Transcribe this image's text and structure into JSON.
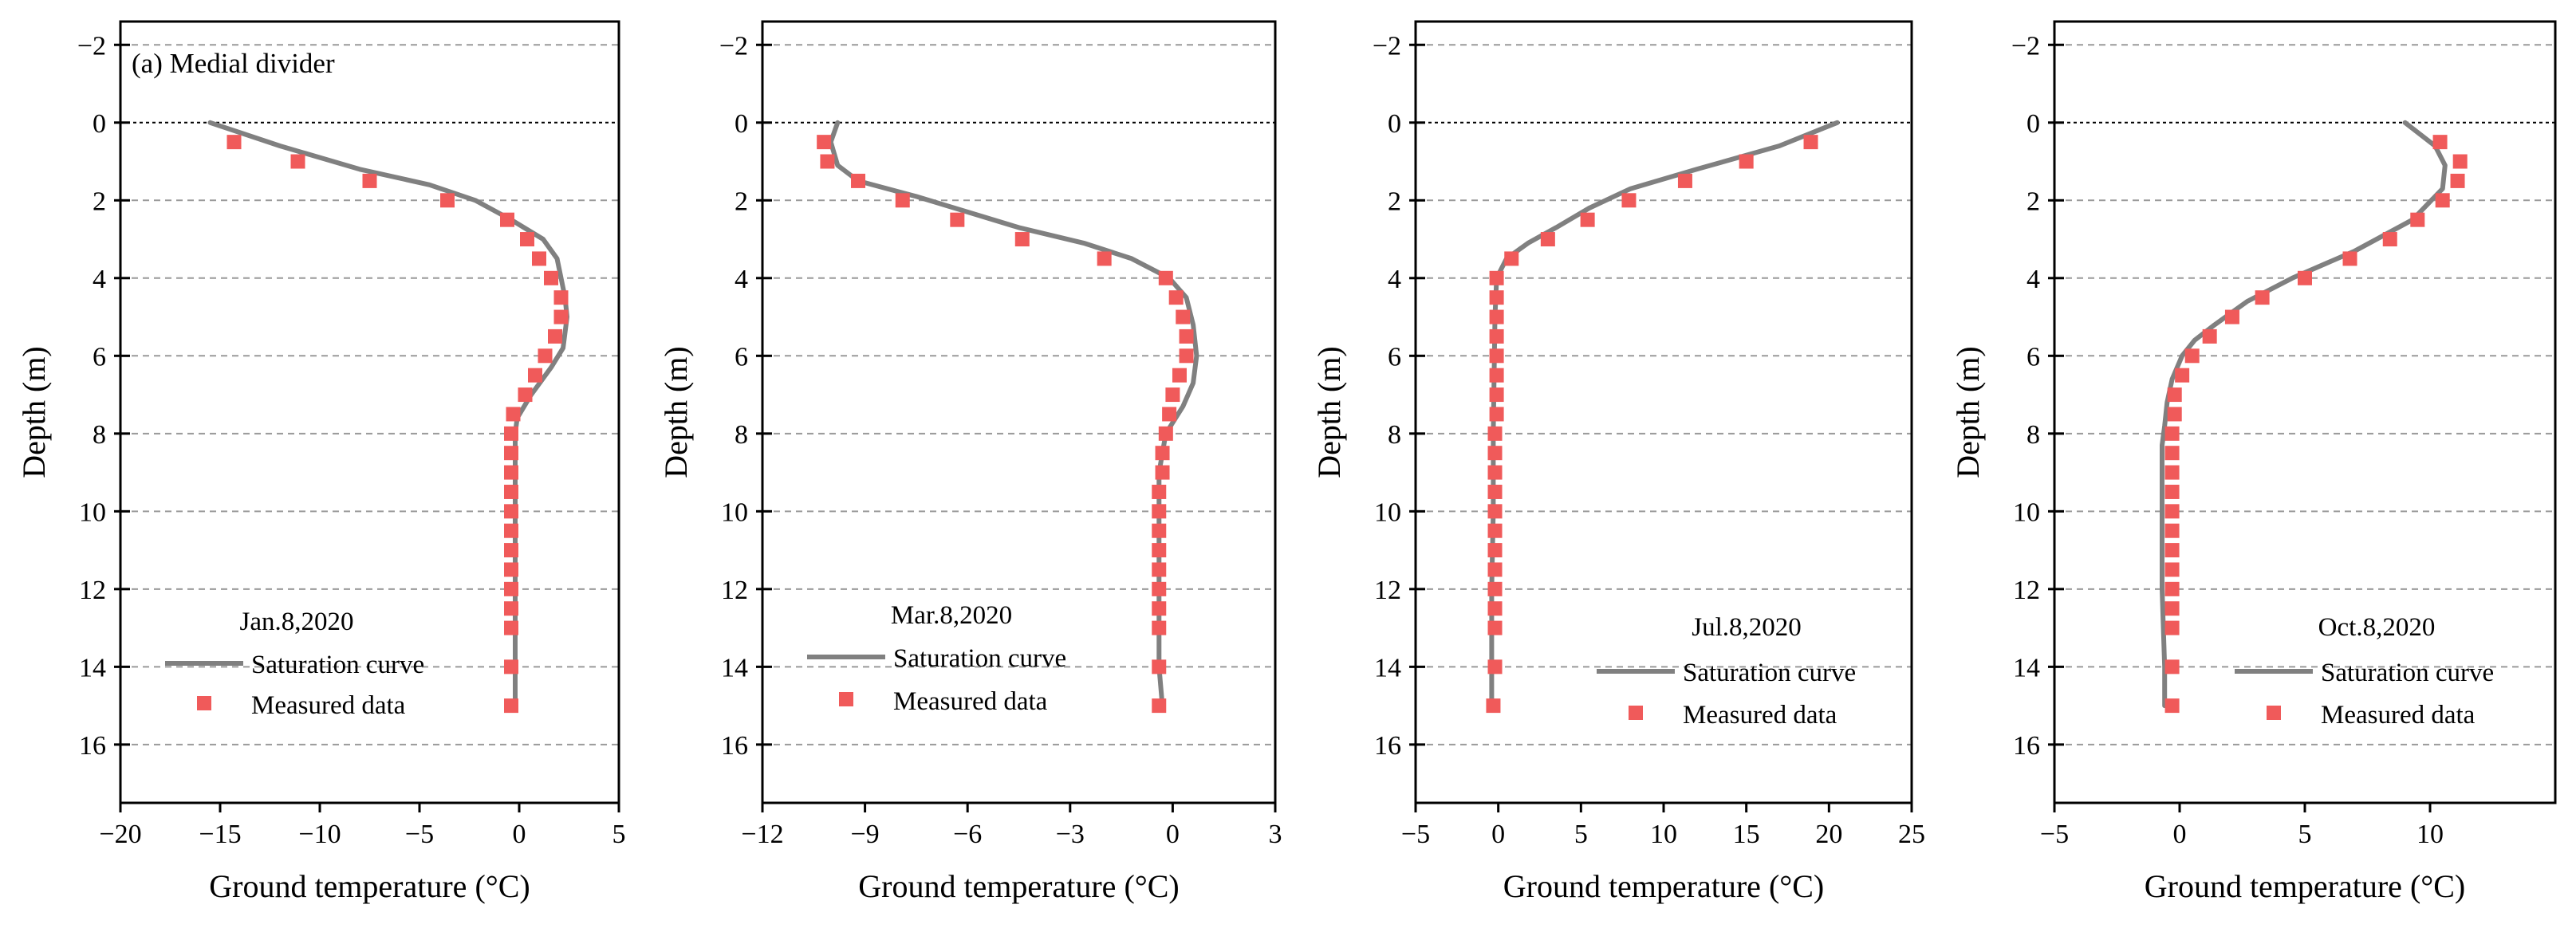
{
  "figure": {
    "series_names": {
      "curve": "Saturation curve",
      "points": "Measured data"
    },
    "colors": {
      "curve": "#808080",
      "points": "#f05a5a",
      "grid": "#9a9a9a",
      "axis": "#000000",
      "zero_line": "#000000"
    }
  },
  "chart_data": [
    {
      "type": "line",
      "panel_label": "(a) Medial divider",
      "date": "Jan.8,2020",
      "xlabel": "Ground temperature (°C)",
      "ylabel": "Depth (m)",
      "xlim": [
        -20,
        5
      ],
      "xticks": [
        -20,
        -15,
        -10,
        -5,
        0,
        5
      ],
      "xtick_labels": [
        "−20",
        "−15",
        "−10",
        "−5",
        "0",
        "5"
      ],
      "ylim": [
        -2.6,
        17.5
      ],
      "yticks": [
        -2,
        0,
        2,
        4,
        6,
        8,
        10,
        12,
        14,
        16
      ],
      "ytick_labels": [
        "−2",
        "0",
        "2",
        "4",
        "6",
        "8",
        "10",
        "12",
        "14",
        "16"
      ],
      "grid": "horizontal dashed",
      "saturation_curve": [
        [
          -15.5,
          0
        ],
        [
          -12,
          0.6
        ],
        [
          -8,
          1.2
        ],
        [
          -4.5,
          1.6
        ],
        [
          -2.2,
          2.0
        ],
        [
          -0.4,
          2.5
        ],
        [
          1.2,
          3.0
        ],
        [
          1.9,
          3.5
        ],
        [
          2.3,
          4.5
        ],
        [
          2.4,
          5.0
        ],
        [
          2.2,
          5.8
        ],
        [
          1.6,
          6.3
        ],
        [
          0.6,
          7.0
        ],
        [
          -0.1,
          7.6
        ],
        [
          -0.2,
          8.0
        ],
        [
          -0.2,
          10
        ],
        [
          -0.2,
          12
        ],
        [
          -0.2,
          14
        ],
        [
          -0.2,
          15
        ]
      ],
      "measured_data": [
        [
          -14.3,
          0.5
        ],
        [
          -11.1,
          1.0
        ],
        [
          -7.5,
          1.5
        ],
        [
          -3.6,
          2.0
        ],
        [
          -0.6,
          2.5
        ],
        [
          0.4,
          3.0
        ],
        [
          1.0,
          3.5
        ],
        [
          1.6,
          4.0
        ],
        [
          2.1,
          4.5
        ],
        [
          2.1,
          5.0
        ],
        [
          1.8,
          5.5
        ],
        [
          1.3,
          6.0
        ],
        [
          0.8,
          6.5
        ],
        [
          0.3,
          7.0
        ],
        [
          -0.3,
          7.5
        ],
        [
          -0.4,
          8.0
        ],
        [
          -0.4,
          8.5
        ],
        [
          -0.4,
          9.0
        ],
        [
          -0.4,
          9.5
        ],
        [
          -0.4,
          10.0
        ],
        [
          -0.4,
          10.5
        ],
        [
          -0.4,
          11.0
        ],
        [
          -0.4,
          11.5
        ],
        [
          -0.4,
          12.0
        ],
        [
          -0.4,
          12.5
        ],
        [
          -0.4,
          13.0
        ],
        [
          -0.4,
          14.0
        ],
        [
          -0.4,
          15.0
        ]
      ]
    },
    {
      "type": "line",
      "panel_label": "",
      "date": "Mar.8,2020",
      "xlabel": "Ground temperature (°C)",
      "ylabel": "Depth (m)",
      "xlim": [
        -12,
        3
      ],
      "xticks": [
        -12,
        -9,
        -6,
        -3,
        0,
        3
      ],
      "xtick_labels": [
        "−12",
        "−9",
        "−6",
        "−3",
        "0",
        "3"
      ],
      "ylim": [
        -2.6,
        17.5
      ],
      "yticks": [
        -2,
        0,
        2,
        4,
        6,
        8,
        10,
        12,
        14,
        16
      ],
      "ytick_labels": [
        "−2",
        "0",
        "2",
        "4",
        "6",
        "8",
        "10",
        "12",
        "14",
        "16"
      ],
      "grid": "horizontal dashed",
      "saturation_curve": [
        [
          -9.8,
          0
        ],
        [
          -10.0,
          0.5
        ],
        [
          -9.8,
          1.1
        ],
        [
          -9.2,
          1.5
        ],
        [
          -7.5,
          1.9
        ],
        [
          -6.0,
          2.3
        ],
        [
          -4.5,
          2.7
        ],
        [
          -2.6,
          3.1
        ],
        [
          -1.2,
          3.5
        ],
        [
          -0.1,
          4.0
        ],
        [
          0.4,
          4.5
        ],
        [
          0.6,
          5.2
        ],
        [
          0.7,
          6.0
        ],
        [
          0.6,
          6.7
        ],
        [
          0.3,
          7.3
        ],
        [
          -0.2,
          8.0
        ],
        [
          -0.4,
          9.0
        ],
        [
          -0.4,
          10
        ],
        [
          -0.4,
          12
        ],
        [
          -0.4,
          14
        ],
        [
          -0.3,
          15
        ]
      ],
      "measured_data": [
        [
          -10.2,
          0.5
        ],
        [
          -10.1,
          1.0
        ],
        [
          -9.2,
          1.5
        ],
        [
          -7.9,
          2.0
        ],
        [
          -6.3,
          2.5
        ],
        [
          -4.4,
          3.0
        ],
        [
          -2.0,
          3.5
        ],
        [
          -0.2,
          4.0
        ],
        [
          0.1,
          4.5
        ],
        [
          0.3,
          5.0
        ],
        [
          0.4,
          5.5
        ],
        [
          0.4,
          6.0
        ],
        [
          0.2,
          6.5
        ],
        [
          0.0,
          7.0
        ],
        [
          -0.1,
          7.5
        ],
        [
          -0.2,
          8.0
        ],
        [
          -0.3,
          8.5
        ],
        [
          -0.3,
          9.0
        ],
        [
          -0.4,
          9.5
        ],
        [
          -0.4,
          10.0
        ],
        [
          -0.4,
          10.5
        ],
        [
          -0.4,
          11.0
        ],
        [
          -0.4,
          11.5
        ],
        [
          -0.4,
          12.0
        ],
        [
          -0.4,
          12.5
        ],
        [
          -0.4,
          13.0
        ],
        [
          -0.4,
          14.0
        ],
        [
          -0.4,
          15.0
        ]
      ]
    },
    {
      "type": "line",
      "panel_label": "",
      "date": "Jul.8,2020",
      "xlabel": "Ground temperature (°C)",
      "ylabel": "Depth (m)",
      "xlim": [
        -5,
        25
      ],
      "xticks": [
        -5,
        0,
        5,
        10,
        15,
        20,
        25
      ],
      "xtick_labels": [
        "−5",
        "0",
        "5",
        "10",
        "15",
        "20",
        "25"
      ],
      "ylim": [
        -2.6,
        17.5
      ],
      "yticks": [
        -2,
        0,
        2,
        4,
        6,
        8,
        10,
        12,
        14,
        16
      ],
      "ytick_labels": [
        "−2",
        "0",
        "2",
        "4",
        "6",
        "8",
        "10",
        "12",
        "14",
        "16"
      ],
      "grid": "horizontal dashed",
      "saturation_curve": [
        [
          20.5,
          0
        ],
        [
          17,
          0.6
        ],
        [
          12,
          1.2
        ],
        [
          8,
          1.7
        ],
        [
          5.5,
          2.2
        ],
        [
          3.5,
          2.7
        ],
        [
          1.8,
          3.1
        ],
        [
          0.5,
          3.5
        ],
        [
          -0.1,
          4.0
        ],
        [
          -0.2,
          5
        ],
        [
          -0.3,
          8
        ],
        [
          -0.3,
          10
        ],
        [
          -0.4,
          12
        ],
        [
          -0.4,
          14
        ],
        [
          -0.4,
          15
        ]
      ],
      "measured_data": [
        [
          18.9,
          0.5
        ],
        [
          15.0,
          1.0
        ],
        [
          11.3,
          1.5
        ],
        [
          7.9,
          2.0
        ],
        [
          5.4,
          2.5
        ],
        [
          3.0,
          3.0
        ],
        [
          0.8,
          3.5
        ],
        [
          -0.1,
          4.0
        ],
        [
          -0.1,
          4.5
        ],
        [
          -0.1,
          5.0
        ],
        [
          -0.1,
          5.5
        ],
        [
          -0.1,
          6.0
        ],
        [
          -0.1,
          6.5
        ],
        [
          -0.1,
          7.0
        ],
        [
          -0.1,
          7.5
        ],
        [
          -0.2,
          8.0
        ],
        [
          -0.2,
          8.5
        ],
        [
          -0.2,
          9.0
        ],
        [
          -0.2,
          9.5
        ],
        [
          -0.2,
          10.0
        ],
        [
          -0.2,
          10.5
        ],
        [
          -0.2,
          11.0
        ],
        [
          -0.2,
          11.5
        ],
        [
          -0.2,
          12.0
        ],
        [
          -0.2,
          12.5
        ],
        [
          -0.2,
          13.0
        ],
        [
          -0.2,
          14.0
        ],
        [
          -0.3,
          15.0
        ]
      ]
    },
    {
      "type": "line",
      "panel_label": "",
      "date": "Oct.8,2020",
      "xlabel": "Ground temperature (°C)",
      "ylabel": "Depth (m)",
      "xlim": [
        -5,
        15
      ],
      "xticks": [
        -5,
        0,
        5,
        10
      ],
      "xtick_labels": [
        "−5",
        "0",
        "5",
        "10"
      ],
      "ylim": [
        -2.6,
        17.5
      ],
      "yticks": [
        -2,
        0,
        2,
        4,
        6,
        8,
        10,
        12,
        14,
        16
      ],
      "ytick_labels": [
        "−2",
        "0",
        "2",
        "4",
        "6",
        "8",
        "10",
        "12",
        "14",
        "16"
      ],
      "grid": "horizontal dashed",
      "saturation_curve": [
        [
          9.0,
          0
        ],
        [
          10.2,
          0.6
        ],
        [
          10.6,
          1.1
        ],
        [
          10.5,
          1.7
        ],
        [
          9.3,
          2.5
        ],
        [
          7.0,
          3.3
        ],
        [
          4.5,
          4.0
        ],
        [
          2.7,
          4.6
        ],
        [
          1.4,
          5.2
        ],
        [
          0.6,
          5.6
        ],
        [
          0.1,
          6.0
        ],
        [
          -0.3,
          6.6
        ],
        [
          -0.5,
          7.2
        ],
        [
          -0.6,
          7.8
        ],
        [
          -0.7,
          8.3
        ],
        [
          -0.7,
          10
        ],
        [
          -0.7,
          12
        ],
        [
          -0.6,
          14
        ],
        [
          -0.6,
          15
        ]
      ],
      "measured_data": [
        [
          10.4,
          0.5
        ],
        [
          11.2,
          1.0
        ],
        [
          11.1,
          1.5
        ],
        [
          10.5,
          2.0
        ],
        [
          9.5,
          2.5
        ],
        [
          8.4,
          3.0
        ],
        [
          6.8,
          3.5
        ],
        [
          5.0,
          4.0
        ],
        [
          3.3,
          4.5
        ],
        [
          2.1,
          5.0
        ],
        [
          1.2,
          5.5
        ],
        [
          0.5,
          6.0
        ],
        [
          0.1,
          6.5
        ],
        [
          -0.2,
          7.0
        ],
        [
          -0.2,
          7.5
        ],
        [
          -0.3,
          8.0
        ],
        [
          -0.3,
          8.5
        ],
        [
          -0.3,
          9.0
        ],
        [
          -0.3,
          9.5
        ],
        [
          -0.3,
          10.0
        ],
        [
          -0.3,
          10.5
        ],
        [
          -0.3,
          11.0
        ],
        [
          -0.3,
          11.5
        ],
        [
          -0.3,
          12.0
        ],
        [
          -0.3,
          12.5
        ],
        [
          -0.3,
          13.0
        ],
        [
          -0.3,
          14.0
        ],
        [
          -0.3,
          15.0
        ]
      ]
    }
  ]
}
